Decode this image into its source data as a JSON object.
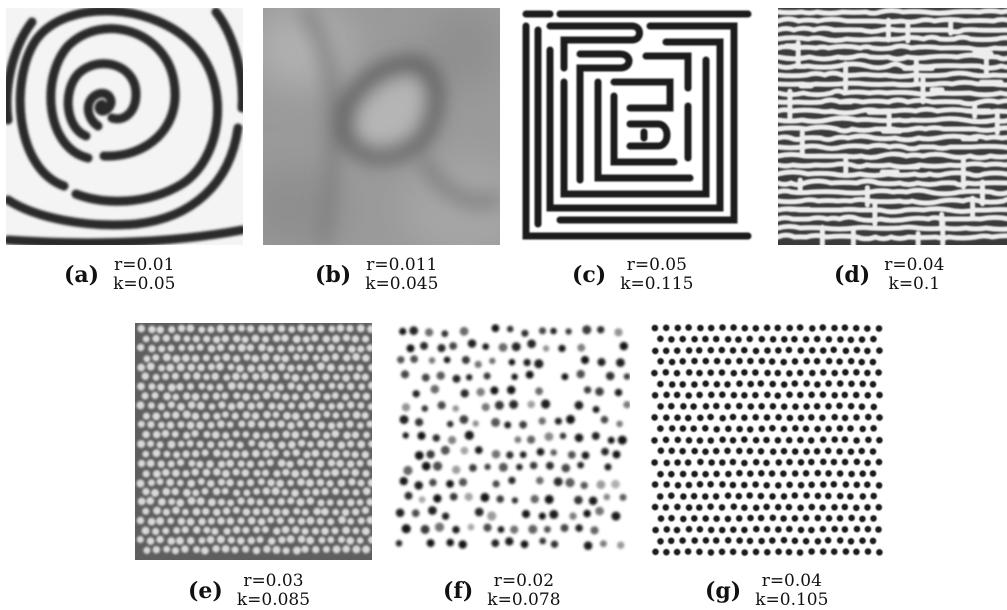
{
  "figure": {
    "panels": [
      {
        "id": "a",
        "label": "(a)",
        "r": "r=0.01",
        "k": "k=0.05",
        "pattern": "spiral"
      },
      {
        "id": "b",
        "label": "(b)",
        "r": "r=0.011",
        "k": "k=0.045",
        "pattern": "blurred-loop"
      },
      {
        "id": "c",
        "label": "(c)",
        "r": "r=0.05",
        "k": "k=0.115",
        "pattern": "sparse-labyrinth"
      },
      {
        "id": "d",
        "label": "(d)",
        "r": "r=0.04",
        "k": "k=0.1",
        "pattern": "dense-labyrinth"
      },
      {
        "id": "e",
        "label": "(e)",
        "r": "r=0.03",
        "k": "k=0.085",
        "pattern": "light-spots-on-gray"
      },
      {
        "id": "f",
        "label": "(f)",
        "r": "r=0.02",
        "k": "k=0.078",
        "pattern": "disordered-dark-spots"
      },
      {
        "id": "g",
        "label": "(g)",
        "r": "r=0.04",
        "k": "k=0.105",
        "pattern": "ordered-dark-spots"
      }
    ]
  }
}
